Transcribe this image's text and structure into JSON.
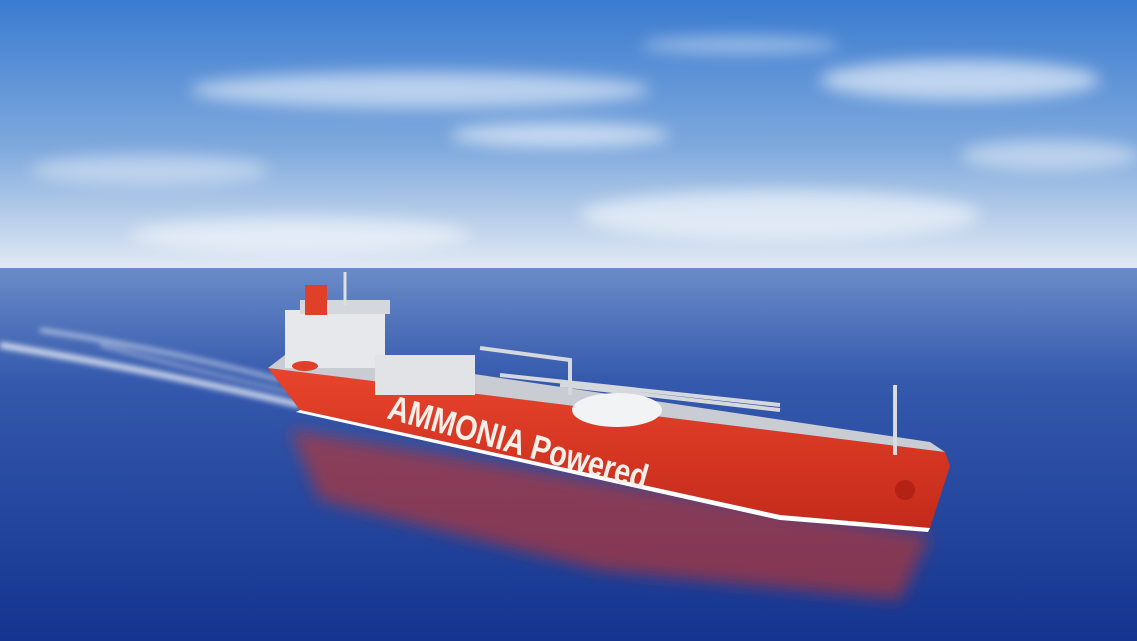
{
  "hull_text": "AMMONIA Powered"
}
